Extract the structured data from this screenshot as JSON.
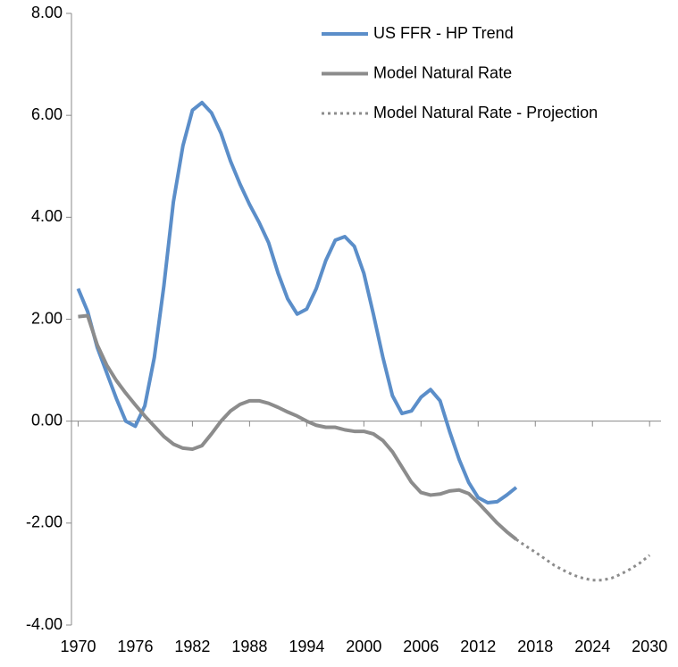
{
  "chart_data": {
    "type": "line",
    "xlim": [
      1969.3,
      2031.2
    ],
    "xticks": [
      1970,
      1976,
      1982,
      1988,
      1994,
      2000,
      2006,
      2012,
      2018,
      2024,
      2030
    ],
    "ylim": [
      -4,
      8
    ],
    "yticks": [
      {
        "value": -4,
        "label": "-4.00"
      },
      {
        "value": -2,
        "label": "-2.00"
      },
      {
        "value": 0,
        "label": "0.00"
      },
      {
        "value": 2,
        "label": "2.00"
      },
      {
        "value": 4,
        "label": "4.00"
      },
      {
        "value": 6,
        "label": "6.00"
      },
      {
        "value": 8,
        "label": "8.00"
      }
    ],
    "legend": "top-right",
    "series": [
      {
        "name": "US FFR - HP Trend",
        "color": "#5b8ec9",
        "dash": "solid",
        "x": [
          1970,
          1971,
          1972,
          1973,
          1974,
          1975,
          1976,
          1977,
          1978,
          1979,
          1980,
          1981,
          1982,
          1983,
          1984,
          1985,
          1986,
          1987,
          1988,
          1989,
          1990,
          1991,
          1992,
          1993,
          1994,
          1995,
          1996,
          1997,
          1998,
          1999,
          2000,
          2001,
          2002,
          2003,
          2004,
          2005,
          2006,
          2007,
          2008,
          2009,
          2010,
          2011,
          2012,
          2013,
          2014,
          2015,
          2016
        ],
        "values": [
          2.6,
          2.15,
          1.45,
          0.95,
          0.45,
          0.0,
          -0.1,
          0.3,
          1.25,
          2.65,
          4.3,
          5.4,
          6.1,
          6.25,
          6.05,
          5.65,
          5.1,
          4.65,
          4.25,
          3.9,
          3.5,
          2.9,
          2.4,
          2.1,
          2.2,
          2.6,
          3.15,
          3.55,
          3.62,
          3.43,
          2.9,
          2.1,
          1.25,
          0.5,
          0.15,
          0.2,
          0.47,
          0.62,
          0.4,
          -0.2,
          -0.75,
          -1.2,
          -1.5,
          -1.6,
          -1.58,
          -1.45,
          -1.3
        ]
      },
      {
        "name": "Model Natural Rate",
        "color": "#8c8c8c",
        "dash": "solid",
        "x": [
          1970,
          1971,
          1972,
          1973,
          1974,
          1975,
          1976,
          1977,
          1978,
          1979,
          1980,
          1981,
          1982,
          1983,
          1984,
          1985,
          1986,
          1987,
          1988,
          1989,
          1990,
          1991,
          1992,
          1993,
          1994,
          1995,
          1996,
          1997,
          1998,
          1999,
          2000,
          2001,
          2002,
          2003,
          2004,
          2005,
          2006,
          2007,
          2008,
          2009,
          2010,
          2011,
          2012,
          2013,
          2014,
          2015,
          2016
        ],
        "values": [
          2.05,
          2.07,
          1.5,
          1.1,
          0.8,
          0.55,
          0.32,
          0.1,
          -0.1,
          -0.3,
          -0.45,
          -0.53,
          -0.55,
          -0.48,
          -0.25,
          0.0,
          0.2,
          0.33,
          0.4,
          0.4,
          0.35,
          0.27,
          0.18,
          0.1,
          0.0,
          -0.08,
          -0.12,
          -0.12,
          -0.17,
          -0.2,
          -0.2,
          -0.25,
          -0.38,
          -0.6,
          -0.9,
          -1.2,
          -1.4,
          -1.45,
          -1.43,
          -1.37,
          -1.35,
          -1.42,
          -1.6,
          -1.8,
          -2.0,
          -2.17,
          -2.32
        ]
      },
      {
        "name": "Model Natural Rate - Projection",
        "color": "#8c8c8c",
        "dash": "dotted",
        "x": [
          2016,
          2017,
          2018,
          2019,
          2020,
          2021,
          2022,
          2023,
          2024,
          2025,
          2026,
          2027,
          2028,
          2029,
          2030
        ],
        "values": [
          -2.32,
          -2.45,
          -2.57,
          -2.7,
          -2.83,
          -2.93,
          -3.02,
          -3.08,
          -3.12,
          -3.12,
          -3.08,
          -3.0,
          -2.9,
          -2.78,
          -2.63
        ]
      }
    ]
  }
}
